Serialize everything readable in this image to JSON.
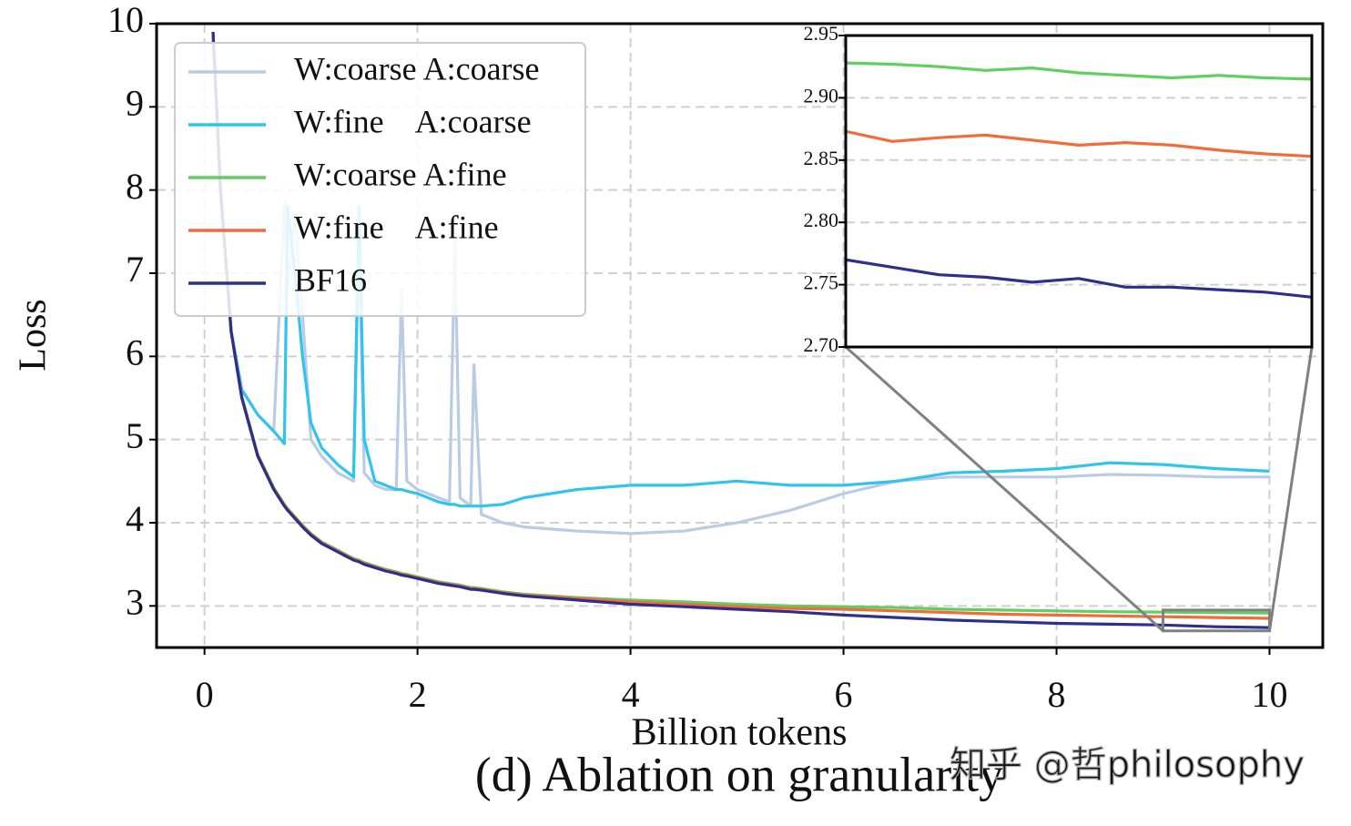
{
  "chart_data": [
    {
      "type": "line",
      "title": "(d) Ablation on granularity",
      "xlabel": "Billion tokens",
      "ylabel": "Loss",
      "x": [
        0.08,
        0.15,
        0.25,
        0.35,
        0.5,
        0.65,
        0.75,
        0.78,
        0.85,
        0.92,
        1.0,
        1.1,
        1.25,
        1.4,
        1.45,
        1.5,
        1.6,
        1.7,
        1.8,
        1.85,
        1.9,
        2.0,
        2.2,
        2.3,
        2.35,
        2.4,
        2.5,
        2.53,
        2.6,
        2.8,
        3.0,
        3.5,
        4.0,
        4.5,
        5.0,
        5.5,
        6.0,
        6.5,
        7.0,
        7.5,
        8.0,
        8.5,
        9.0,
        9.5,
        10.0
      ],
      "series": [
        {
          "name": "W:coarse A:coarse",
          "color": "#b9cce4",
          "values": [
            9.9,
            8.0,
            6.3,
            5.6,
            5.3,
            5.1,
            7.85,
            6.8,
            7.7,
            6.5,
            5.0,
            4.8,
            4.6,
            4.5,
            7.5,
            4.6,
            4.45,
            4.4,
            4.4,
            6.8,
            4.5,
            4.4,
            4.3,
            4.25,
            7.4,
            4.3,
            4.2,
            5.9,
            4.1,
            4.0,
            3.95,
            3.9,
            3.87,
            3.9,
            4.0,
            4.15,
            4.35,
            4.5,
            4.55,
            4.55,
            4.55,
            4.58,
            4.57,
            4.55,
            4.55
          ]
        },
        {
          "name": "W:fine    A:coarse",
          "color": "#2ec4ef",
          "values": [
            9.9,
            8.0,
            6.3,
            5.6,
            5.3,
            5.1,
            4.95,
            7.8,
            7.0,
            6.0,
            5.2,
            4.9,
            4.7,
            4.55,
            7.8,
            5.0,
            4.5,
            4.45,
            4.4,
            4.4,
            4.38,
            4.35,
            4.25,
            4.22,
            4.22,
            4.2,
            4.2,
            4.2,
            4.2,
            4.22,
            4.3,
            4.4,
            4.45,
            4.45,
            4.5,
            4.45,
            4.45,
            4.5,
            4.6,
            4.62,
            4.65,
            4.72,
            4.7,
            4.65,
            4.62
          ]
        },
        {
          "name": "W:coarse A:fine",
          "color": "#5fcf5f",
          "values": [
            9.9,
            8.0,
            6.3,
            5.52,
            4.82,
            4.42,
            4.22,
            4.17,
            4.07,
            3.97,
            3.87,
            3.77,
            3.67,
            3.57,
            3.55,
            3.52,
            3.48,
            3.44,
            3.41,
            3.39,
            3.38,
            3.35,
            3.29,
            3.27,
            3.26,
            3.25,
            3.22,
            3.22,
            3.21,
            3.17,
            3.14,
            3.1,
            3.07,
            3.05,
            3.02,
            3.0,
            2.99,
            2.98,
            2.96,
            2.95,
            2.94,
            2.93,
            2.925,
            2.92,
            2.915
          ]
        },
        {
          "name": "W:fine    A:fine",
          "color": "#f26b3a",
          "values": [
            9.9,
            8.0,
            6.3,
            5.51,
            4.81,
            4.41,
            4.21,
            4.16,
            4.06,
            3.96,
            3.86,
            3.76,
            3.66,
            3.56,
            3.54,
            3.51,
            3.47,
            3.43,
            3.4,
            3.38,
            3.37,
            3.34,
            3.28,
            3.26,
            3.25,
            3.24,
            3.21,
            3.21,
            3.2,
            3.16,
            3.13,
            3.09,
            3.05,
            3.02,
            2.99,
            2.97,
            2.96,
            2.94,
            2.92,
            2.9,
            2.89,
            2.88,
            2.87,
            2.86,
            2.85
          ]
        },
        {
          "name": "BF16",
          "color": "#2e2e8c",
          "values": [
            9.9,
            8.0,
            6.3,
            5.5,
            4.8,
            4.4,
            4.2,
            4.15,
            4.05,
            3.95,
            3.85,
            3.75,
            3.65,
            3.55,
            3.53,
            3.5,
            3.46,
            3.42,
            3.39,
            3.37,
            3.36,
            3.33,
            3.27,
            3.25,
            3.24,
            3.23,
            3.2,
            3.2,
            3.19,
            3.15,
            3.12,
            3.07,
            3.02,
            2.99,
            2.96,
            2.93,
            2.89,
            2.86,
            2.83,
            2.81,
            2.79,
            2.78,
            2.77,
            2.75,
            2.74
          ]
        }
      ],
      "xlim": [
        -0.45,
        10.5
      ],
      "ylim": [
        2.5,
        10
      ],
      "xticks": [
        0,
        2,
        4,
        6,
        8,
        10
      ],
      "yticks": [
        3,
        4,
        5,
        6,
        7,
        8,
        9,
        10
      ],
      "grid": true,
      "legend": "upper left"
    },
    {
      "type": "line",
      "x": [
        9.0,
        9.1,
        9.2,
        9.3,
        9.4,
        9.5,
        9.6,
        9.7,
        9.8,
        9.9,
        10.0
      ],
      "series": [
        {
          "color": "#5fcf5f",
          "values": [
            2.928,
            2.927,
            2.925,
            2.922,
            2.924,
            2.92,
            2.918,
            2.916,
            2.918,
            2.916,
            2.915
          ]
        },
        {
          "color": "#f26b3a",
          "values": [
            2.873,
            2.865,
            2.868,
            2.87,
            2.866,
            2.862,
            2.864,
            2.862,
            2.858,
            2.855,
            2.853
          ]
        },
        {
          "color": "#2e2e8c",
          "values": [
            2.77,
            2.764,
            2.758,
            2.756,
            2.752,
            2.755,
            2.748,
            2.748,
            2.746,
            2.744,
            2.74
          ]
        }
      ],
      "xlim": [
        9,
        10
      ],
      "ylim": [
        2.7,
        2.95
      ],
      "yticks": [
        {
          "value": 2.7,
          "label": "2.70"
        },
        {
          "value": 2.75,
          "label": "2.75"
        },
        {
          "value": 2.8,
          "label": "2.80"
        },
        {
          "value": 2.85,
          "label": "2.85"
        },
        {
          "value": 2.9,
          "label": "2.90"
        },
        {
          "value": 2.95,
          "label": "2.95"
        }
      ],
      "grid": true
    }
  ],
  "watermark": "知乎 @哲philosophy"
}
